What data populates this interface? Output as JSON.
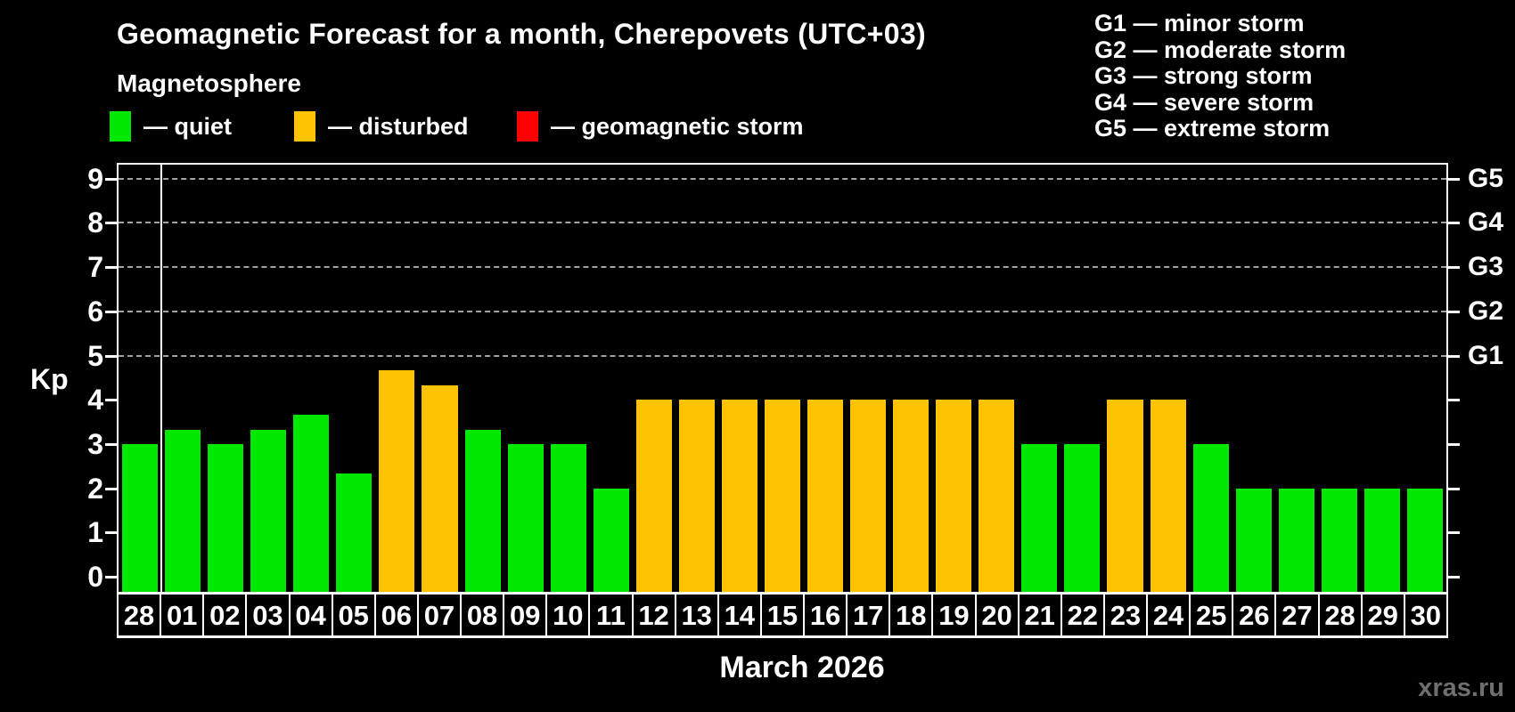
{
  "title": "Geomagnetic Forecast for a month, Cherepovets (UTC+03)",
  "subtitle": "Magnetosphere",
  "legend": {
    "quiet": {
      "label": "— quiet",
      "color": "#00e800"
    },
    "disturbed": {
      "label": "— disturbed",
      "color": "#ffc200"
    },
    "storm": {
      "label": "— geomagnetic storm",
      "color": "#ff0000"
    }
  },
  "g_legend": [
    "G1 — minor storm",
    "G2 — moderate storm",
    "G3 — strong storm",
    "G4 — severe storm",
    "G5 — extreme storm"
  ],
  "watermark": "xras.ru",
  "chart_data": {
    "type": "bar",
    "title": "Geomagnetic Forecast for a month, Cherepovets (UTC+03)",
    "ylabel": "Kp",
    "xlabel": "March 2026",
    "ylim": [
      0,
      9
    ],
    "yticks": [
      0,
      1,
      2,
      3,
      4,
      5,
      6,
      7,
      8,
      9
    ],
    "gridlines_at": [
      5,
      6,
      7,
      8,
      9
    ],
    "grid": true,
    "right_axis": [
      {
        "kp": 5,
        "label": "G1"
      },
      {
        "kp": 6,
        "label": "G2"
      },
      {
        "kp": 7,
        "label": "G3"
      },
      {
        "kp": 8,
        "label": "G4"
      },
      {
        "kp": 9,
        "label": "G5"
      }
    ],
    "month_divider_after_index": 0,
    "categories": [
      "28",
      "01",
      "02",
      "03",
      "04",
      "05",
      "06",
      "07",
      "08",
      "09",
      "10",
      "11",
      "12",
      "13",
      "14",
      "15",
      "16",
      "17",
      "18",
      "19",
      "20",
      "21",
      "22",
      "23",
      "24",
      "25",
      "26",
      "27",
      "28",
      "29",
      "30"
    ],
    "values": [
      3.0,
      3.33,
      3.0,
      3.33,
      3.67,
      2.33,
      4.67,
      4.33,
      3.33,
      3.0,
      3.0,
      2.0,
      4.0,
      4.0,
      4.0,
      4.0,
      4.0,
      4.0,
      4.0,
      4.0,
      4.0,
      3.0,
      3.0,
      4.0,
      4.0,
      3.0,
      2.0,
      2.0,
      2.0,
      2.0,
      2.0
    ],
    "statuses": [
      "quiet",
      "quiet",
      "quiet",
      "quiet",
      "quiet",
      "quiet",
      "disturbed",
      "disturbed",
      "quiet",
      "quiet",
      "quiet",
      "quiet",
      "disturbed",
      "disturbed",
      "disturbed",
      "disturbed",
      "disturbed",
      "disturbed",
      "disturbed",
      "disturbed",
      "disturbed",
      "quiet",
      "quiet",
      "disturbed",
      "disturbed",
      "quiet",
      "quiet",
      "quiet",
      "quiet",
      "quiet",
      "quiet"
    ],
    "status_colors": {
      "quiet": "#00e800",
      "disturbed": "#ffc200",
      "storm": "#ff0000"
    }
  }
}
